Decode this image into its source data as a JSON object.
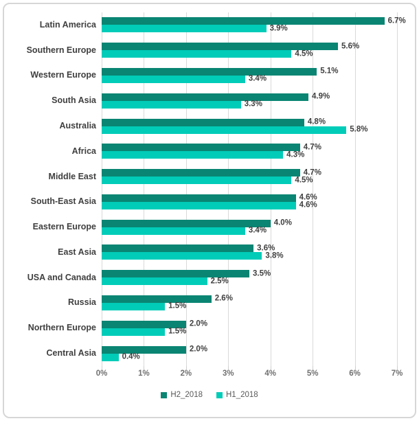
{
  "chart_data": {
    "type": "bar",
    "orientation": "horizontal",
    "title": "",
    "xlabel": "",
    "ylabel": "",
    "categories": [
      "Latin America",
      "Southern Europe",
      "Western Europe",
      "South Asia",
      "Australia",
      "Africa",
      "Middle East",
      "South-East Asia",
      "Eastern Europe",
      "East Asia",
      "USA and Canada",
      "Russia",
      "Northern Europe",
      "Central Asia"
    ],
    "series": [
      {
        "name": "H2_2018",
        "color": "#0a8573",
        "values": [
          6.7,
          5.6,
          5.1,
          4.9,
          4.8,
          4.7,
          4.7,
          4.6,
          4.0,
          3.6,
          3.5,
          2.6,
          2.0,
          2.0
        ]
      },
      {
        "name": "H1_2018",
        "color": "#00ccb8",
        "values": [
          3.9,
          4.5,
          3.4,
          3.3,
          5.8,
          4.3,
          4.5,
          4.6,
          3.4,
          3.8,
          2.5,
          1.5,
          1.5,
          0.4
        ]
      }
    ],
    "value_suffix": "%",
    "value_decimals": 1,
    "x_axis": {
      "min": 0,
      "max": 7,
      "tick_step": 1,
      "tick_labels": [
        "0%",
        "1%",
        "2%",
        "3%",
        "4%",
        "5%",
        "6%",
        "7%"
      ]
    },
    "grid": true,
    "gridline_color": "#d9d9d9",
    "label_color": "#3f3f3f",
    "axis_label_color": "#707070",
    "legend_position": "bottom",
    "legend": [
      "H2_2018",
      "H1_2018"
    ]
  }
}
